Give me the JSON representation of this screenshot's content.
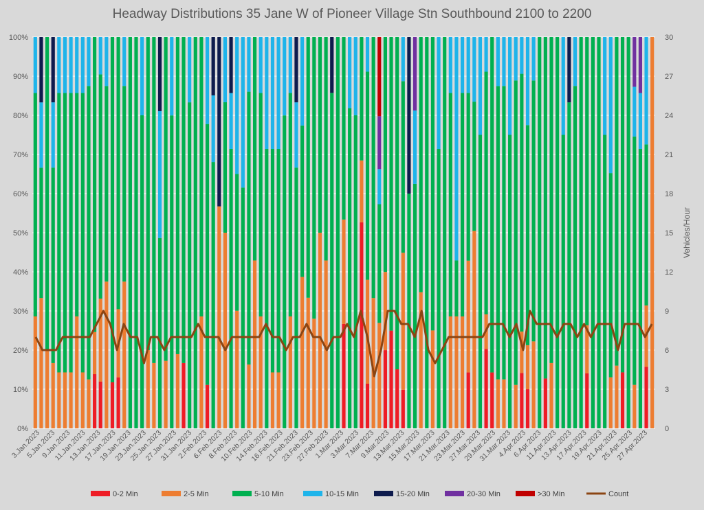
{
  "chart_data": {
    "type": "bar",
    "stacked": "percent",
    "title": "Headway Distributions 35 Jane  W of Pioneer Village Stn Southbound 2100 to 2200",
    "y_right_label": "Vehicles/Hour",
    "y_left_ticks": [
      "0%",
      "10%",
      "20%",
      "30%",
      "40%",
      "50%",
      "60%",
      "70%",
      "80%",
      "90%",
      "100%"
    ],
    "y_right_ticks": [
      "0",
      "3",
      "6",
      "9",
      "12",
      "15",
      "18",
      "21",
      "24",
      "27",
      "30"
    ],
    "ylim_left": [
      0,
      100
    ],
    "ylim_right": [
      0,
      30
    ],
    "grid": true,
    "legend_position": "bottom",
    "x_tick_labels": [
      "3.Jan.2023",
      "5.Jan.2023",
      "9.Jan.2023",
      "11.Jan.2023",
      "13.Jan.2023",
      "17.Jan.2023",
      "19.Jan.2023",
      "23.Jan.2023",
      "25.Jan.2023",
      "27.Jan.2023",
      "31.Jan.2023",
      "2.Feb.2023",
      "6.Feb.2023",
      "8.Feb.2023",
      "10.Feb.2023",
      "14.Feb.2023",
      "16.Feb.2023",
      "21.Feb.2023",
      "23.Feb.2023",
      "27.Feb.2023",
      "1.Mar.2023",
      "3.Mar.2023",
      "7.Mar.2023",
      "9.Mar.2023",
      "13.Mar.2023",
      "15.Mar.2023",
      "17.Mar.2023",
      "21.Mar.2023",
      "23.Mar.2023",
      "27.Mar.2023",
      "29.Mar.2023",
      "31.Mar.2023",
      "4.Apr.2023",
      "6.Apr.2023",
      "11.Apr.2023",
      "13.Apr.2023",
      "17.Apr.2023",
      "19.Apr.2023",
      "21.Apr.2023",
      "25.Apr.2023",
      "27.Apr.2023"
    ],
    "series": [
      {
        "name": "0-2 Min",
        "color": "#ee1c25",
        "values": [
          0,
          0,
          0,
          0,
          0,
          0,
          0,
          0,
          0,
          0,
          14.3,
          12.5,
          0,
          11.1,
          12.5,
          0,
          0,
          0,
          0,
          0,
          0,
          0,
          0,
          0,
          0,
          14.3,
          0,
          0,
          0,
          12.5,
          0,
          0,
          0,
          0,
          0,
          0,
          0,
          0,
          0,
          0,
          0,
          0,
          0,
          0,
          0,
          0,
          0,
          0,
          0,
          0,
          0,
          0,
          28.6,
          0,
          0,
          55.6,
          14.3,
          0,
          0,
          33.3,
          33.3,
          11.1,
          12.5,
          0,
          0,
          0,
          0,
          0,
          0,
          0,
          0,
          0,
          0,
          14.3,
          0,
          0,
          28.6,
          12.5,
          0,
          0,
          0,
          0,
          16.7,
          11.1,
          0,
          0,
          12.5,
          0,
          0,
          0,
          0,
          0,
          0,
          14.3,
          0,
          0,
          0,
          0,
          0,
          16.7,
          0,
          0,
          0,
          14.3,
          0
        ]
      },
      {
        "name": "2-5 Min",
        "color": "#ed7d31",
        "values": [
          28.6,
          33.3,
          16.7,
          16.7,
          14.3,
          14.3,
          14.3,
          28.6,
          14.3,
          12.5,
          11.1,
          22.2,
          37.5,
          0,
          16.7,
          37.5,
          0,
          0,
          0,
          20,
          14.3,
          0,
          14.3,
          0,
          16.7,
          0,
          0,
          0,
          28.6,
          0,
          0,
          37.5,
          42.9,
          0,
          28.6,
          0,
          16.7,
          42.9,
          28.6,
          0,
          14.3,
          14.3,
          0,
          28.6,
          0,
          28.6,
          28.6,
          16.7,
          28.6,
          42.9,
          0,
          0,
          28.6,
          0,
          0,
          16.7,
          33.3,
          33.3,
          33.3,
          33.3,
          0,
          0,
          44.4,
          0,
          0,
          40,
          0,
          28.6,
          0,
          0,
          28.6,
          28.6,
          28.6,
          28.6,
          43.7,
          0,
          12.5,
          0,
          14.3,
          14.3,
          0,
          11.1,
          12.5,
          12.5,
          25,
          0,
          0,
          14.3,
          0,
          0,
          0,
          0,
          0,
          12.5,
          0,
          0,
          0,
          12.5,
          16.7,
          0,
          0,
          12.5,
          0,
          14.3,
          37.5
        ]
      },
      {
        "name": "5-10 Min",
        "color": "#00b050",
        "values": [
          57.1,
          33.3,
          66.7,
          50,
          71.4,
          71.4,
          71.4,
          57.1,
          71.4,
          75,
          77.8,
          60,
          50,
          83.3,
          66.7,
          50,
          100,
          100,
          80,
          80,
          71.4,
          42.9,
          68.6,
          66.7,
          71.4,
          71.4,
          71.4,
          71.4,
          71.4,
          75,
          57.1,
          0,
          28.6,
          71.4,
          33.3,
          57.1,
          71.4,
          57.1,
          57.1,
          71.4,
          57.1,
          57.1,
          57.1,
          57.1,
          66.7,
          28.6,
          57.1,
          42.9,
          28.6,
          57.1,
          66.7,
          50,
          50,
          50,
          44.4,
          33.3,
          66.7,
          66.7,
          37.5,
          100,
          100,
          62.5,
          55.6,
          60,
          55.6,
          75,
          57.1,
          85.7,
          71.4,
          71.4,
          57.1,
          14.3,
          57.1,
          42.9,
          28.6,
          75,
          87.5,
          75,
          85.7,
          85.7,
          75,
          77.8,
          77.8,
          62.5,
          75,
          100,
          85.7,
          71.4,
          85.7,
          75,
          71.4,
          87.5,
          87.5,
          75,
          100,
          100,
          75,
          50,
          87.5,
          100,
          75,
          71.4,
          71.4,
          37.5
        ]
      },
      {
        "name": "10-15 Min",
        "color": "#1eb4ea",
        "values": [
          14.3,
          16.7,
          0,
          16.7,
          14.3,
          14.3,
          14.3,
          14.3,
          14.3,
          12.5,
          0,
          10,
          12.5,
          0,
          0,
          12.5,
          0,
          0,
          20,
          0,
          0,
          28.6,
          0,
          16.7,
          0,
          0,
          14.3,
          0,
          0,
          25,
          14.3,
          0,
          14.3,
          14.3,
          33.3,
          35.7,
          14.3,
          0,
          14.3,
          28.6,
          28.6,
          28.6,
          14.3,
          14.3,
          16.7,
          16.7,
          0,
          0,
          0,
          0,
          0,
          0,
          0,
          11.1,
          11.1,
          0,
          11.1,
          0,
          11.1,
          0,
          0,
          0,
          14.3,
          0,
          16.7,
          0,
          0,
          0,
          28.6,
          0,
          14.3,
          57.1,
          14.3,
          14.3,
          14.3,
          25,
          12.5,
          0,
          14.3,
          14.3,
          25,
          11.1,
          11.1,
          25,
          12.5,
          0,
          0,
          0,
          0,
          25,
          0,
          12.5,
          0,
          0,
          0,
          0,
          25,
          33.3,
          0,
          0,
          0,
          14.3,
          14.3,
          25
        ]
      },
      {
        "name": "15-20 Min",
        "color": "#0e1b4d",
        "values": [
          0,
          16.7,
          0,
          16.7,
          0,
          0,
          0,
          0,
          0,
          0,
          0,
          0,
          0,
          0,
          0,
          0,
          0,
          0,
          0,
          0,
          0,
          16.7,
          0,
          0,
          0,
          0,
          0,
          0,
          0,
          0,
          12.5,
          28.6,
          0,
          14.3,
          0,
          0,
          0,
          0,
          0,
          0,
          0,
          0,
          0,
          0,
          16.7,
          0,
          0,
          0,
          0,
          0,
          11.1,
          0,
          0,
          0,
          0,
          0,
          0,
          0,
          0,
          0,
          0,
          0,
          0,
          40,
          0,
          0,
          0,
          0,
          0,
          0,
          0,
          0,
          0,
          0,
          0,
          0,
          0,
          0,
          0,
          0,
          0,
          0,
          0,
          0,
          0,
          0,
          0,
          0,
          0,
          0,
          14.3,
          0,
          0,
          0,
          0,
          0,
          0,
          0,
          0,
          0,
          0,
          0,
          0,
          0,
          0
        ]
      },
      {
        "name": "20-30 Min",
        "color": "#7030a0",
        "values": [
          0,
          0,
          0,
          0,
          0,
          0,
          0,
          0,
          0,
          0,
          0,
          0,
          0,
          0,
          0,
          0,
          0,
          0,
          0,
          0,
          0,
          0,
          0,
          0,
          0,
          0,
          0,
          0,
          0,
          0,
          0,
          0,
          0,
          0,
          0,
          0,
          0,
          0,
          0,
          0,
          0,
          0,
          0,
          0,
          0,
          0,
          0,
          0,
          0,
          0,
          0,
          0,
          0,
          0,
          0,
          0,
          0,
          0,
          16.7,
          0,
          0,
          0,
          0,
          0,
          16.7,
          0,
          0,
          0,
          0,
          0,
          0,
          0,
          0,
          0,
          0,
          0,
          0,
          0,
          0,
          0,
          0,
          0,
          0,
          0,
          0,
          0,
          0,
          0,
          0,
          0,
          0,
          0,
          0,
          0,
          0,
          0,
          0,
          0,
          0,
          0,
          0,
          14.3,
          14.3,
          0
        ]
      },
      {
        "name": ">30 Min",
        "color": "#c00000",
        "values": [
          0,
          0,
          0,
          0,
          0,
          0,
          0,
          0,
          0,
          0,
          0,
          0,
          0,
          0,
          0,
          0,
          0,
          0,
          0,
          0,
          0,
          0,
          0,
          0,
          0,
          0,
          0,
          0,
          0,
          0,
          0,
          0,
          0,
          0,
          0,
          0,
          0,
          0,
          0,
          0,
          0,
          0,
          0,
          0,
          0,
          0,
          0,
          0,
          0,
          0,
          0,
          0,
          0,
          0,
          0,
          0,
          0,
          0,
          25,
          0,
          0,
          0,
          0,
          0,
          0,
          0,
          0,
          0,
          0,
          0,
          0,
          0,
          0,
          0,
          0,
          0,
          0,
          0,
          0,
          0,
          0,
          0,
          0,
          0,
          0,
          0,
          0,
          0,
          0,
          0,
          0,
          0,
          0,
          0,
          0,
          0,
          0,
          0,
          0,
          0,
          0,
          0,
          0,
          0,
          0,
          0
        ]
      },
      {
        "name": "Count",
        "color": "#8b4513",
        "type": "line",
        "axis": "right",
        "values": [
          7,
          6,
          6,
          6,
          7,
          7,
          7,
          7,
          7,
          8,
          9,
          8,
          6,
          8,
          7,
          7,
          5,
          7,
          7,
          6,
          7,
          7,
          7,
          7,
          8,
          7,
          7,
          7,
          6,
          7,
          7,
          7,
          7,
          7,
          8,
          7,
          7,
          6,
          7,
          7,
          8,
          7,
          7,
          6,
          7,
          7,
          8,
          7,
          9,
          7,
          4,
          6,
          9,
          9,
          8,
          8,
          7,
          9,
          6,
          5,
          6,
          7,
          7,
          7,
          7,
          7,
          7,
          8,
          8,
          8,
          7,
          8,
          6,
          9,
          8,
          8,
          8,
          7,
          8,
          8,
          7,
          8,
          7,
          8,
          8,
          8,
          6,
          8,
          8,
          8,
          7,
          8
        ]
      }
    ],
    "legend": [
      "0-2 Min",
      "2-5 Min",
      "5-10 Min",
      "10-15 Min",
      "15-20 Min",
      "20-30 Min",
      ">30 Min",
      "Count"
    ]
  }
}
